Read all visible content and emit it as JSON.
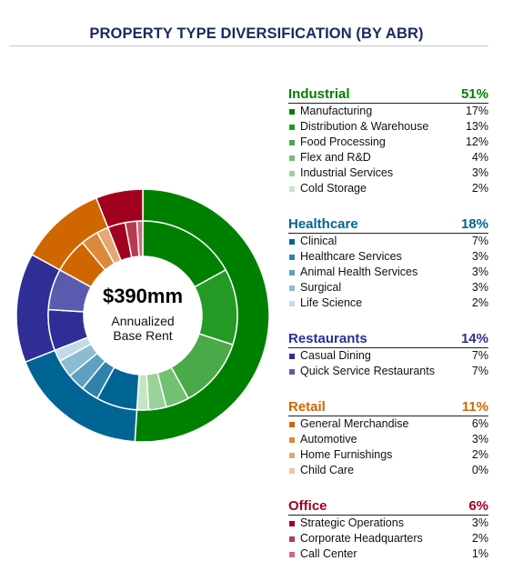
{
  "title": "PROPERTY TYPE DIVERSIFICATION (BY ABR)",
  "center": {
    "amount": "$390mm",
    "line1": "Annualized",
    "line2": "Base Rent"
  },
  "chart_data": {
    "type": "pie",
    "title": "PROPERTY TYPE DIVERSIFICATION (BY ABR)",
    "groups": [
      {
        "name": "Industrial",
        "total": 51,
        "total_label": "51%",
        "color": "#008000",
        "items": [
          {
            "name": "Manufacturing",
            "value": 17,
            "label": "17%",
            "color": "#008000"
          },
          {
            "name": "Distribution & Warehouse",
            "value": 13,
            "label": "13%",
            "color": "#239a23"
          },
          {
            "name": "Food Processing",
            "value": 12,
            "label": "12%",
            "color": "#4aaa4a"
          },
          {
            "name": "Flex and R&D",
            "value": 4,
            "label": "4%",
            "color": "#72c072"
          },
          {
            "name": "Industrial Services",
            "value": 3,
            "label": "3%",
            "color": "#99d299"
          },
          {
            "name": "Cold Storage",
            "value": 2,
            "label": "2%",
            "color": "#c4e6c4"
          }
        ]
      },
      {
        "name": "Healthcare",
        "total": 18,
        "total_label": "18%",
        "color": "#006494",
        "items": [
          {
            "name": "Clinical",
            "value": 7,
            "label": "7%",
            "color": "#006494"
          },
          {
            "name": "Healthcare Services",
            "value": 3,
            "label": "3%",
            "color": "#2f83ab"
          },
          {
            "name": "Animal Health Services",
            "value": 3,
            "label": "3%",
            "color": "#5f9fc0"
          },
          {
            "name": "Surgical",
            "value": 3,
            "label": "3%",
            "color": "#8dbbd3"
          },
          {
            "name": "Life Science",
            "value": 2,
            "label": "2%",
            "color": "#c3dbe8"
          }
        ]
      },
      {
        "name": "Restaurants",
        "total": 14,
        "total_label": "14%",
        "color": "#2e2e96",
        "items": [
          {
            "name": "Casual Dining",
            "value": 7,
            "label": "7%",
            "color": "#2e2e96"
          },
          {
            "name": "Quick Service Restaurants",
            "value": 7,
            "label": "7%",
            "color": "#5a5aae"
          }
        ]
      },
      {
        "name": "Retail",
        "total": 11,
        "total_label": "11%",
        "color": "#d06600",
        "items": [
          {
            "name": "General Merchandise",
            "value": 6,
            "label": "6%",
            "color": "#d06600"
          },
          {
            "name": "Automotive",
            "value": 3,
            "label": "3%",
            "color": "#db8a3c"
          },
          {
            "name": "Home Furnishings",
            "value": 2,
            "label": "2%",
            "color": "#e4a870"
          },
          {
            "name": "Child Care",
            "value": 0,
            "label": "0%",
            "color": "#efc79e"
          }
        ]
      },
      {
        "name": "Office",
        "total": 6,
        "total_label": "6%",
        "color": "#a0001e",
        "items": [
          {
            "name": "Strategic Operations",
            "value": 3,
            "label": "3%",
            "color": "#a0001e"
          },
          {
            "name": "Corporate Headquarters",
            "value": 2,
            "label": "2%",
            "color": "#b83a50"
          },
          {
            "name": "Call Center",
            "value": 1,
            "label": "1%",
            "color": "#cc6a7d"
          }
        ]
      }
    ]
  }
}
